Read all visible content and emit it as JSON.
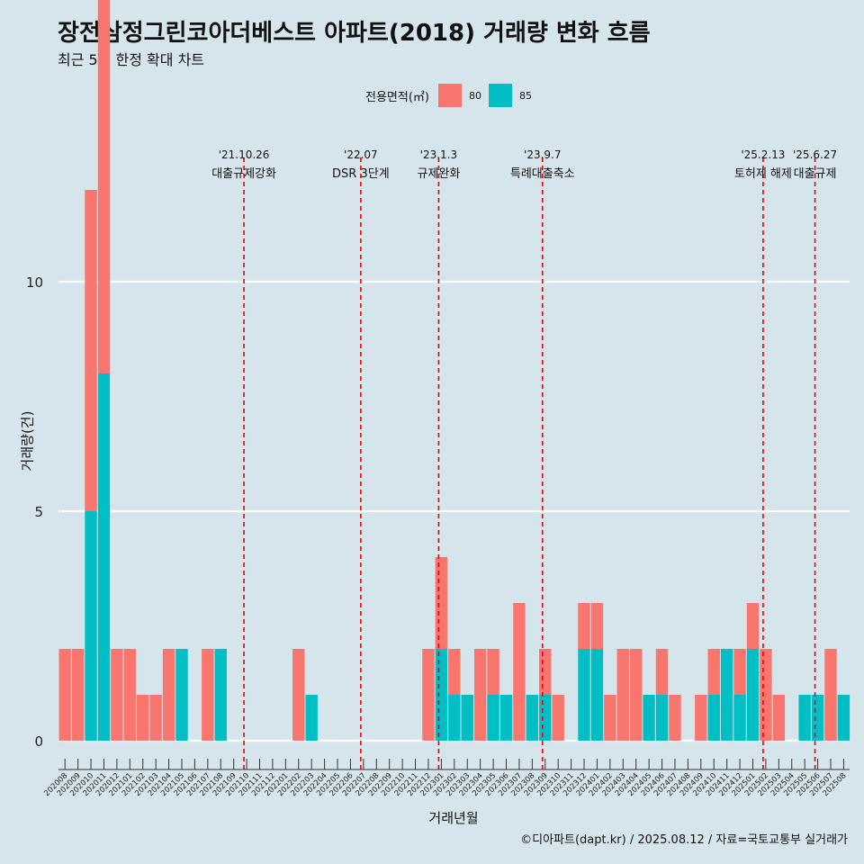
{
  "header": {
    "title": "장전삼정그린코아더베스트 아파트(2018) 거래량 변화 흐름",
    "subtitle": "최근 5년 한정 확대 차트"
  },
  "legend": {
    "title": "전용면적(㎡)",
    "items": [
      {
        "label": "80",
        "color": "#f8766d"
      },
      {
        "label": "85",
        "color": "#00bfc4"
      }
    ]
  },
  "footer": {
    "caption": "©디아파트(dapt.kr) / 2025.08.12 / 자료=국토교통부 실거래가"
  },
  "chart_data": {
    "type": "bar",
    "xlabel": "거래년월",
    "ylabel": "거래량(건)",
    "yticks": [
      0,
      5,
      10
    ],
    "ylim": [
      0,
      12
    ],
    "categories": [
      "202008",
      "202009",
      "202010",
      "202011",
      "202012",
      "202101",
      "202102",
      "202103",
      "202104",
      "202105",
      "202106",
      "202107",
      "202108",
      "202109",
      "202110",
      "202111",
      "202112",
      "202201",
      "202202",
      "202203",
      "202204",
      "202205",
      "202206",
      "202207",
      "202208",
      "202209",
      "202210",
      "202211",
      "202212",
      "202301",
      "202302",
      "202303",
      "202304",
      "202305",
      "202306",
      "202307",
      "202308",
      "202309",
      "202310",
      "202311",
      "202312",
      "202401",
      "202402",
      "202403",
      "202404",
      "202405",
      "202406",
      "202407",
      "202408",
      "202409",
      "202410",
      "202411",
      "202412",
      "202501",
      "202502",
      "202503",
      "202504",
      "202505",
      "202506",
      "202507",
      "202508"
    ],
    "series": [
      {
        "name": "80",
        "color": "#f8766d",
        "values": [
          2,
          2,
          7,
          12,
          2,
          2,
          1,
          1,
          2,
          0,
          0,
          2,
          0,
          0,
          0,
          0,
          0,
          0,
          2,
          0,
          0,
          0,
          0,
          0,
          0,
          0,
          0,
          0,
          2,
          2,
          1,
          0,
          2,
          1,
          0,
          3,
          0,
          1,
          1,
          0,
          1,
          1,
          1,
          2,
          2,
          0,
          1,
          1,
          0,
          1,
          1,
          0,
          1,
          1,
          2,
          1,
          0,
          0,
          0,
          2,
          0
        ]
      },
      {
        "name": "85",
        "color": "#00bfc4",
        "values": [
          0,
          0,
          5,
          8,
          0,
          0,
          0,
          0,
          0,
          2,
          0,
          0,
          2,
          0,
          0,
          0,
          0,
          0,
          0,
          1,
          0,
          0,
          0,
          0,
          0,
          0,
          0,
          0,
          0,
          2,
          1,
          1,
          0,
          1,
          1,
          0,
          1,
          1,
          0,
          0,
          2,
          2,
          0,
          0,
          0,
          1,
          1,
          0,
          0,
          0,
          1,
          2,
          1,
          2,
          0,
          0,
          0,
          1,
          1,
          0,
          1
        ]
      }
    ],
    "annotations": [
      {
        "at": "202110",
        "date": "'21.10.26",
        "label": "대출규제강화"
      },
      {
        "at": "202207",
        "date": "'22.07",
        "label": "DSR 3단계"
      },
      {
        "at": "202301",
        "date": "'23.1.3",
        "label": "규제완화"
      },
      {
        "at": "202309",
        "date": "'23.9.7",
        "label": "특례대출축소"
      },
      {
        "at": "202502",
        "date": "'25.2.13",
        "label": "토허제 해제"
      },
      {
        "at": "202506",
        "date": "'25.6.27",
        "label": "대출규제"
      }
    ],
    "grid": true,
    "legend_position": "top"
  }
}
